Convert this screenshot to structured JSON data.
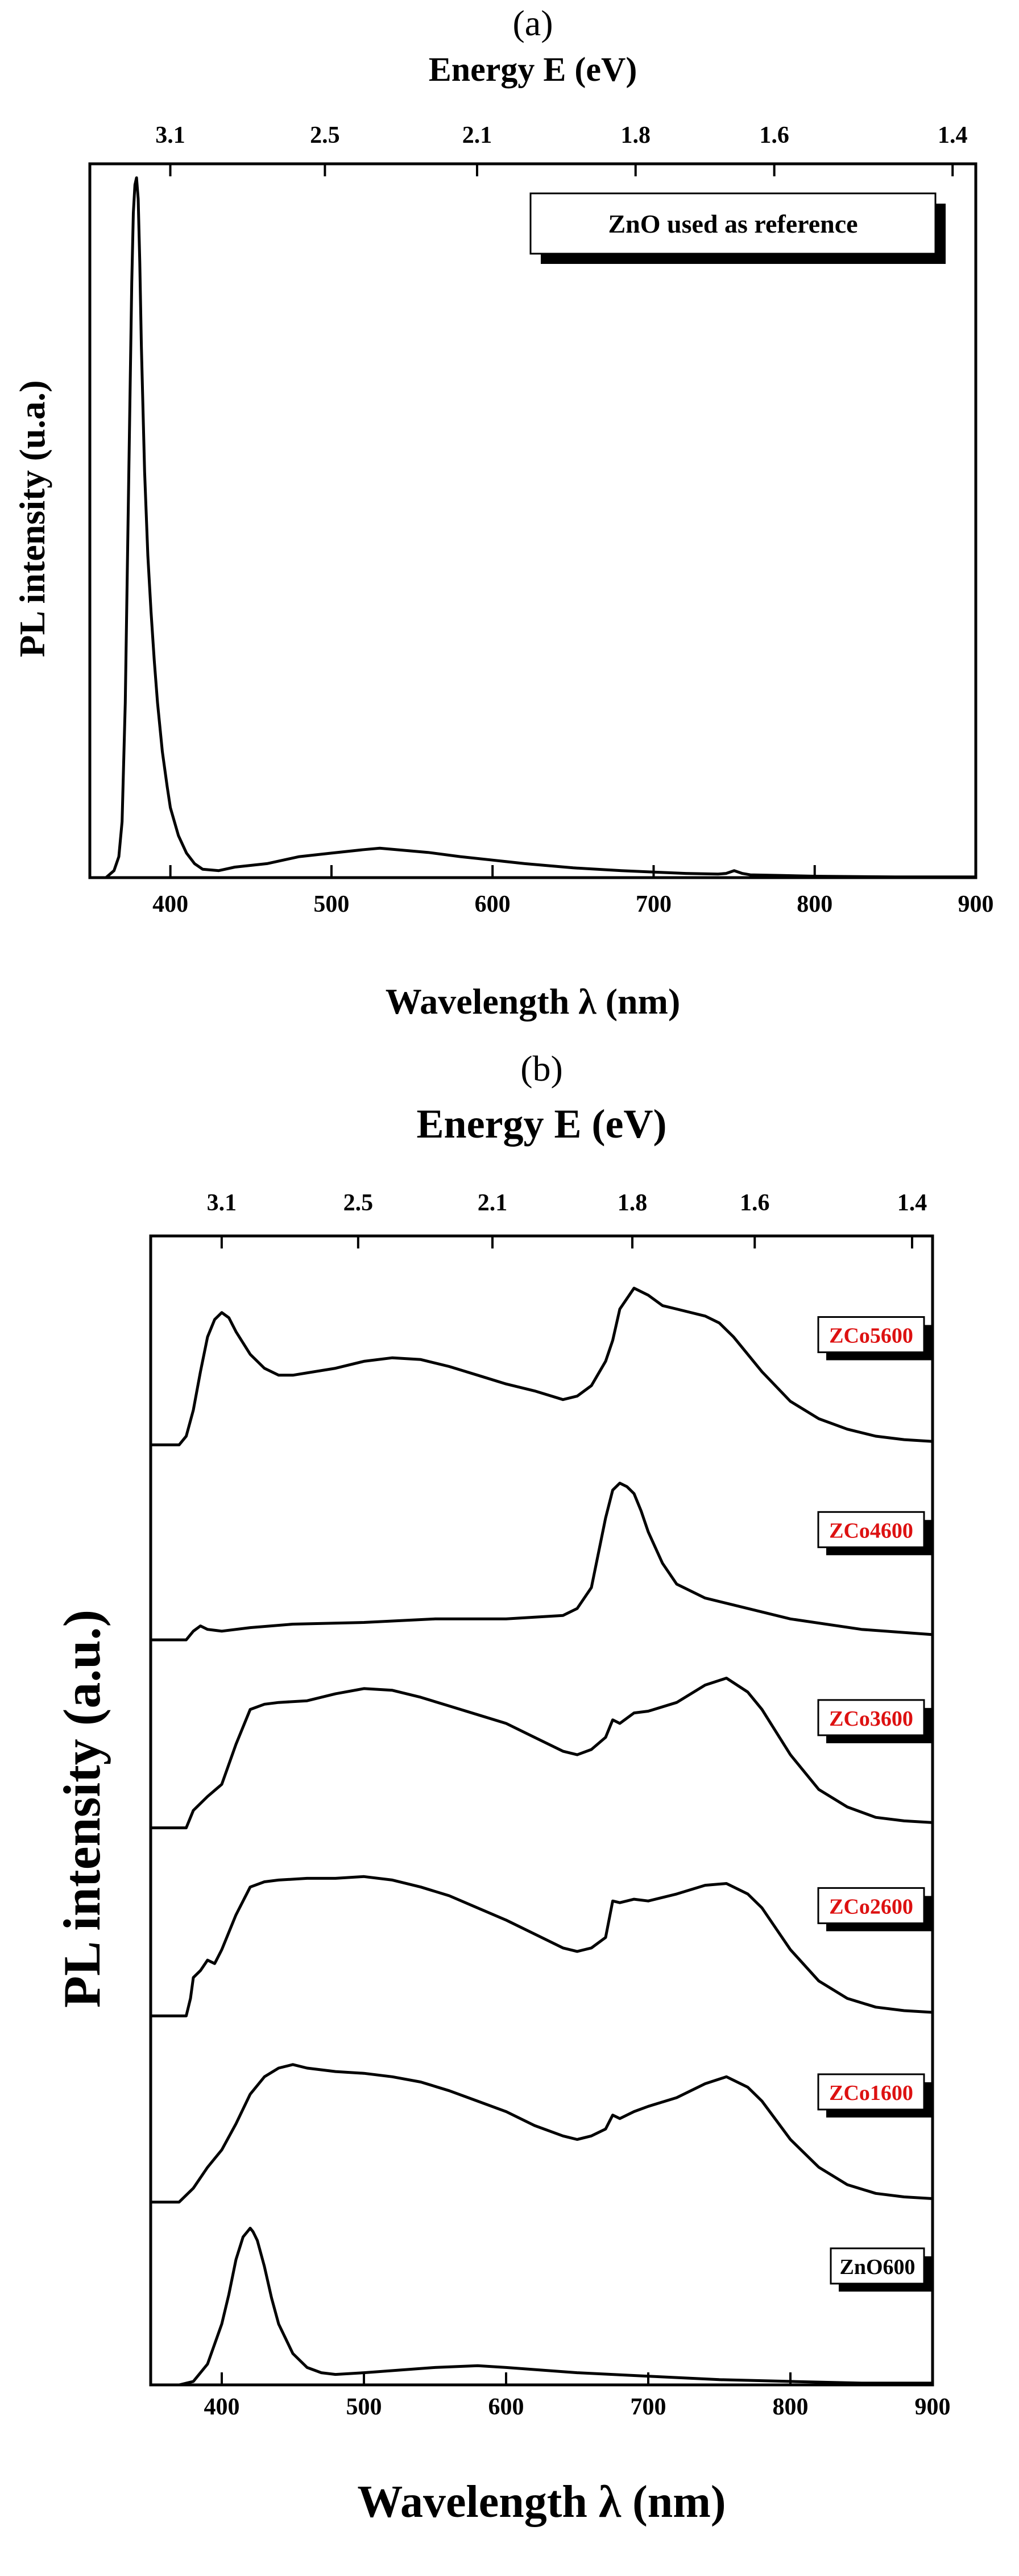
{
  "chart_data": [
    {
      "panel_label": "(a)",
      "type": "line",
      "title": "",
      "xlabel": "Wavelength λ (nm)",
      "ylabel": "PL intensity (u.a.)",
      "x2label": "Energy E (eV)",
      "xlim": [
        350,
        900
      ],
      "ylim": [
        0,
        1.02
      ],
      "x_ticks": [
        400,
        500,
        600,
        700,
        800,
        900
      ],
      "x_tick_labels": [
        "400",
        "500",
        "600",
        "700",
        "800",
        "900"
      ],
      "top_ticks": [
        3.1,
        2.5,
        2.1,
        1.8,
        1.6,
        1.4
      ],
      "top_tick_labels": [
        "3.1",
        "2.5",
        "2.1",
        "1.8",
        "1.6",
        "1.4"
      ],
      "legend": "ZnO used as reference",
      "series": [
        {
          "name": "ZnO used as reference",
          "x": [
            350,
            360,
            365,
            368,
            370,
            372,
            374,
            376,
            377,
            378,
            379,
            380,
            381,
            382,
            384,
            386,
            388,
            390,
            392,
            395,
            398,
            400,
            405,
            410,
            415,
            420,
            430,
            440,
            460,
            480,
            500,
            520,
            530,
            540,
            560,
            580,
            600,
            620,
            650,
            680,
            700,
            720,
            740,
            745,
            750,
            755,
            760,
            780,
            800,
            850,
            900
          ],
          "y": [
            0.0,
            0.0,
            0.01,
            0.03,
            0.08,
            0.25,
            0.55,
            0.85,
            0.95,
            0.99,
            1.0,
            0.97,
            0.88,
            0.76,
            0.58,
            0.46,
            0.38,
            0.31,
            0.25,
            0.18,
            0.13,
            0.1,
            0.06,
            0.035,
            0.02,
            0.012,
            0.01,
            0.015,
            0.02,
            0.03,
            0.035,
            0.04,
            0.042,
            0.04,
            0.036,
            0.03,
            0.025,
            0.02,
            0.014,
            0.01,
            0.008,
            0.006,
            0.005,
            0.006,
            0.01,
            0.006,
            0.004,
            0.003,
            0.002,
            0.001,
            0.001
          ]
        }
      ]
    },
    {
      "panel_label": "(b)",
      "type": "line",
      "title": "",
      "xlabel": "Wavelength λ (nm)",
      "ylabel": "PL intensity (a.u.)",
      "x2label": "Energy E (eV)",
      "xlim": [
        350,
        900
      ],
      "ylim": [
        0,
        6.6
      ],
      "x_ticks": [
        400,
        500,
        600,
        700,
        800,
        900
      ],
      "x_tick_labels": [
        "400",
        "500",
        "600",
        "700",
        "800",
        "900"
      ],
      "top_ticks": [
        3.1,
        2.5,
        2.1,
        1.8,
        1.6,
        1.4
      ],
      "top_tick_labels": [
        "3.1",
        "2.5",
        "2.1",
        "1.8",
        "1.6",
        "1.4"
      ],
      "series": [
        {
          "name": "ZnO600",
          "label_color": "#000000",
          "offset": 0.0,
          "x": [
            350,
            370,
            380,
            390,
            400,
            405,
            410,
            415,
            418,
            420,
            422,
            425,
            430,
            435,
            440,
            450,
            460,
            470,
            480,
            500,
            550,
            580,
            600,
            650,
            700,
            750,
            800,
            850,
            900
          ],
          "y": [
            0.0,
            0.0,
            0.02,
            0.12,
            0.35,
            0.52,
            0.72,
            0.85,
            0.88,
            0.9,
            0.88,
            0.83,
            0.68,
            0.5,
            0.35,
            0.18,
            0.1,
            0.07,
            0.06,
            0.07,
            0.1,
            0.11,
            0.1,
            0.07,
            0.05,
            0.03,
            0.02,
            0.01,
            0.01
          ]
        },
        {
          "name": "ZCo1600",
          "label_color": "#dd1111",
          "offset": 1.05,
          "x": [
            350,
            370,
            380,
            390,
            400,
            410,
            420,
            430,
            440,
            450,
            460,
            480,
            500,
            520,
            540,
            560,
            580,
            600,
            620,
            640,
            650,
            660,
            670,
            675,
            680,
            690,
            700,
            720,
            740,
            755,
            770,
            780,
            790,
            800,
            820,
            840,
            860,
            880,
            900
          ],
          "y": [
            0.0,
            0.0,
            0.08,
            0.2,
            0.3,
            0.45,
            0.62,
            0.72,
            0.77,
            0.79,
            0.77,
            0.75,
            0.74,
            0.72,
            0.69,
            0.64,
            0.58,
            0.52,
            0.44,
            0.38,
            0.36,
            0.38,
            0.42,
            0.5,
            0.48,
            0.52,
            0.55,
            0.6,
            0.68,
            0.72,
            0.66,
            0.58,
            0.47,
            0.36,
            0.2,
            0.1,
            0.05,
            0.03,
            0.02
          ]
        },
        {
          "name": "ZCo2600",
          "label_color": "#dd1111",
          "offset": 2.12,
          "x": [
            350,
            375,
            378,
            380,
            385,
            390,
            395,
            400,
            410,
            420,
            430,
            440,
            460,
            480,
            500,
            520,
            540,
            560,
            580,
            600,
            620,
            640,
            650,
            660,
            670,
            675,
            680,
            690,
            700,
            720,
            740,
            755,
            770,
            780,
            790,
            800,
            820,
            840,
            860,
            880,
            900
          ],
          "y": [
            0.0,
            0.0,
            0.1,
            0.22,
            0.26,
            0.32,
            0.3,
            0.38,
            0.58,
            0.74,
            0.77,
            0.78,
            0.79,
            0.79,
            0.8,
            0.78,
            0.74,
            0.69,
            0.62,
            0.55,
            0.47,
            0.39,
            0.37,
            0.39,
            0.45,
            0.66,
            0.65,
            0.67,
            0.66,
            0.7,
            0.75,
            0.76,
            0.7,
            0.62,
            0.5,
            0.38,
            0.2,
            0.1,
            0.05,
            0.03,
            0.02
          ]
        },
        {
          "name": "ZCo3600",
          "label_color": "#dd1111",
          "offset": 3.2,
          "x": [
            350,
            375,
            380,
            390,
            400,
            410,
            420,
            430,
            440,
            460,
            480,
            500,
            520,
            540,
            560,
            580,
            600,
            620,
            640,
            650,
            660,
            670,
            675,
            680,
            690,
            700,
            720,
            740,
            755,
            770,
            780,
            790,
            800,
            820,
            840,
            860,
            880,
            900
          ],
          "y": [
            0.0,
            0.0,
            0.1,
            0.18,
            0.25,
            0.48,
            0.68,
            0.71,
            0.72,
            0.73,
            0.77,
            0.8,
            0.79,
            0.75,
            0.7,
            0.65,
            0.6,
            0.52,
            0.44,
            0.42,
            0.45,
            0.52,
            0.62,
            0.6,
            0.66,
            0.67,
            0.72,
            0.82,
            0.86,
            0.78,
            0.68,
            0.55,
            0.42,
            0.22,
            0.12,
            0.06,
            0.04,
            0.03
          ]
        },
        {
          "name": "ZCo4600",
          "label_color": "#dd1111",
          "offset": 4.28,
          "x": [
            350,
            375,
            380,
            385,
            390,
            400,
            420,
            450,
            500,
            550,
            600,
            640,
            650,
            660,
            665,
            670,
            675,
            680,
            685,
            690,
            695,
            700,
            710,
            720,
            740,
            760,
            800,
            850,
            900
          ],
          "y": [
            0.0,
            0.0,
            0.05,
            0.08,
            0.06,
            0.05,
            0.07,
            0.09,
            0.1,
            0.12,
            0.12,
            0.14,
            0.18,
            0.3,
            0.5,
            0.7,
            0.86,
            0.9,
            0.88,
            0.84,
            0.74,
            0.62,
            0.44,
            0.32,
            0.24,
            0.2,
            0.12,
            0.06,
            0.03
          ]
        },
        {
          "name": "ZCo5600",
          "label_color": "#dd1111",
          "offset": 5.4,
          "x": [
            350,
            370,
            375,
            380,
            385,
            390,
            395,
            400,
            405,
            410,
            420,
            430,
            440,
            450,
            480,
            500,
            520,
            540,
            560,
            580,
            600,
            620,
            640,
            650,
            660,
            670,
            675,
            680,
            690,
            700,
            710,
            720,
            740,
            750,
            760,
            780,
            800,
            820,
            840,
            860,
            880,
            900
          ],
          "y": [
            0.0,
            0.0,
            0.05,
            0.2,
            0.42,
            0.62,
            0.72,
            0.76,
            0.73,
            0.65,
            0.52,
            0.44,
            0.4,
            0.4,
            0.44,
            0.48,
            0.5,
            0.49,
            0.45,
            0.4,
            0.35,
            0.31,
            0.26,
            0.28,
            0.34,
            0.48,
            0.6,
            0.78,
            0.9,
            0.86,
            0.8,
            0.78,
            0.74,
            0.7,
            0.62,
            0.42,
            0.25,
            0.15,
            0.09,
            0.05,
            0.03,
            0.02
          ]
        }
      ]
    }
  ]
}
